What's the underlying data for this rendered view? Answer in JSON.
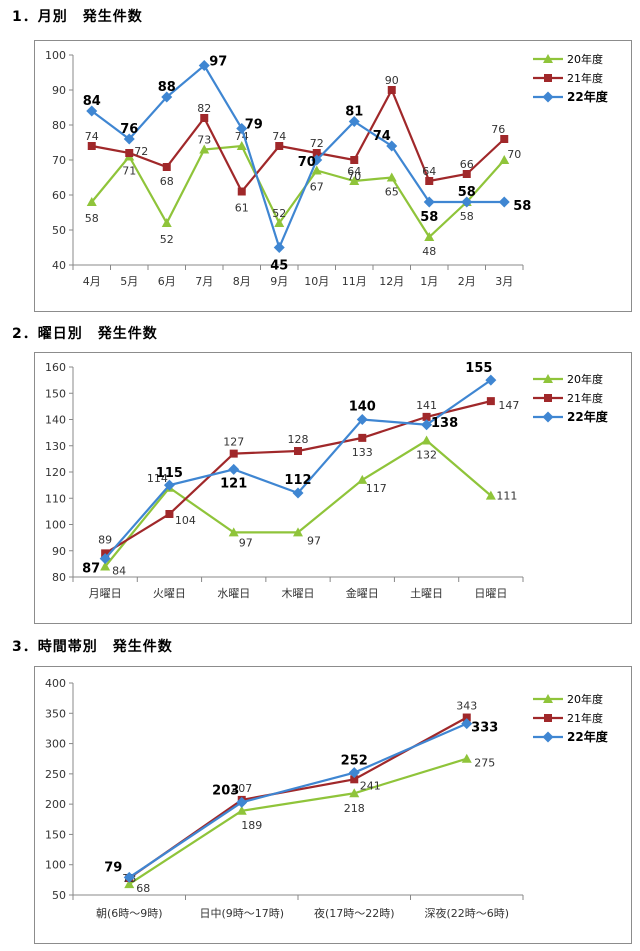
{
  "sections": [
    {
      "title": "1．月別　発生件数"
    },
    {
      "title": "2．曜日別　発生件数"
    },
    {
      "title": "3．時間帯別　発生件数"
    }
  ],
  "chart_data": [
    {
      "type": "line",
      "title": "1．月別　発生件数",
      "categories": [
        "4月",
        "5月",
        "6月",
        "7月",
        "8月",
        "9月",
        "10月",
        "11月",
        "12月",
        "1月",
        "2月",
        "3月"
      ],
      "ylim": [
        40,
        100
      ],
      "yticks": [
        40,
        50,
        60,
        70,
        80,
        90,
        100
      ],
      "legend_position": "top-right",
      "series": [
        {
          "name": "20年度",
          "color": "#8fc43a",
          "marker": "triangle",
          "values": [
            58,
            71,
            52,
            73,
            74,
            52,
            67,
            64,
            65,
            48,
            58,
            70
          ]
        },
        {
          "name": "21年度",
          "color": "#a0282a",
          "marker": "square",
          "values": [
            74,
            72,
            68,
            82,
            61,
            74,
            72,
            70,
            90,
            64,
            66,
            76
          ]
        },
        {
          "name": "22年度",
          "color": "#3f86d2",
          "marker": "diamond",
          "bold": true,
          "values": [
            84,
            76,
            88,
            97,
            79,
            45,
            70,
            81,
            74,
            58,
            58,
            58
          ]
        }
      ]
    },
    {
      "type": "line",
      "title": "2．曜日別　発生件数",
      "categories": [
        "月曜日",
        "火曜日",
        "水曜日",
        "木曜日",
        "金曜日",
        "土曜日",
        "日曜日"
      ],
      "ylim": [
        80,
        160
      ],
      "yticks": [
        80,
        90,
        100,
        110,
        120,
        130,
        140,
        150,
        160
      ],
      "legend_position": "top-right",
      "series": [
        {
          "name": "20年度",
          "color": "#8fc43a",
          "marker": "triangle",
          "values": [
            84,
            114,
            97,
            97,
            117,
            132,
            111
          ]
        },
        {
          "name": "21年度",
          "color": "#a0282a",
          "marker": "square",
          "values": [
            89,
            104,
            127,
            128,
            133,
            141,
            147
          ]
        },
        {
          "name": "22年度",
          "color": "#3f86d2",
          "marker": "diamond",
          "bold": true,
          "values": [
            87,
            115,
            121,
            112,
            140,
            138,
            155
          ]
        }
      ]
    },
    {
      "type": "line",
      "title": "3．時間帯別　発生件数",
      "categories": [
        "朝(6時～9時)",
        "日中(9時～17時)",
        "夜(17時～22時)",
        "深夜(22時～6時)"
      ],
      "ylim": [
        50,
        400
      ],
      "yticks": [
        50,
        100,
        150,
        200,
        250,
        300,
        350,
        400
      ],
      "legend_position": "top-right",
      "series": [
        {
          "name": "20年度",
          "color": "#8fc43a",
          "marker": "triangle",
          "values": [
            68,
            189,
            218,
            275
          ]
        },
        {
          "name": "21年度",
          "color": "#a0282a",
          "marker": "square",
          "values": [
            78,
            207,
            241,
            343
          ]
        },
        {
          "name": "22年度",
          "color": "#3f86d2",
          "marker": "diamond",
          "bold": true,
          "values": [
            79,
            203,
            252,
            333
          ]
        }
      ]
    }
  ]
}
